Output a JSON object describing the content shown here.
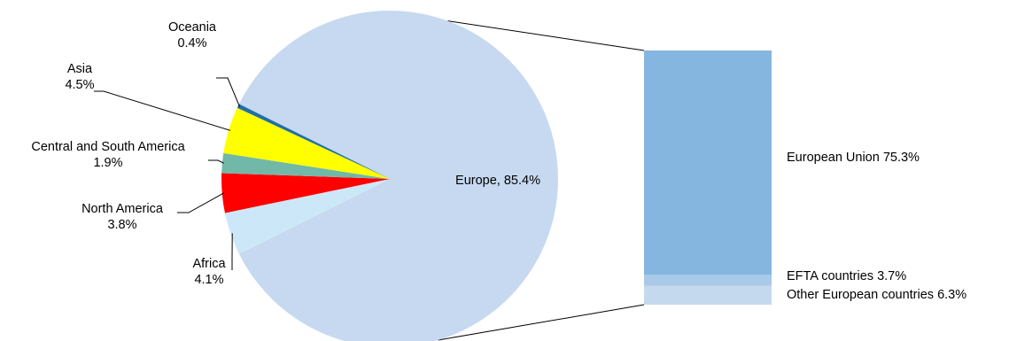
{
  "chart_data": {
    "type": "bar-of-pie",
    "pie": {
      "slices": [
        {
          "name": "Europe",
          "value": 85.4,
          "label_lines": [
            "Europe, 85.4%"
          ],
          "color": "#c6d9f0"
        },
        {
          "name": "Africa",
          "value": 4.1,
          "label_lines": [
            "Africa",
            "4.1%"
          ],
          "color": "#cce8f8"
        },
        {
          "name": "North America",
          "value": 3.8,
          "label_lines": [
            "North America",
            "3.8%"
          ],
          "color": "#ff0000"
        },
        {
          "name": "Central and South America",
          "value": 1.9,
          "label_lines": [
            "Central and South America",
            "1.9%"
          ],
          "color": "#72b8a8"
        },
        {
          "name": "Asia",
          "value": 4.5,
          "label_lines": [
            "Asia",
            "4.5%"
          ],
          "color": "#ffff00"
        },
        {
          "name": "Oceania",
          "value": 0.4,
          "label_lines": [
            "Oceania",
            "0.4%"
          ],
          "color": "#1f6fa8"
        }
      ]
    },
    "bar": {
      "breakdown_of": "Europe",
      "segments": [
        {
          "name": "European Union",
          "value": 75.3,
          "label": "European Union 75.3%",
          "color": "#85b6df"
        },
        {
          "name": "EFTA countries",
          "value": 3.7,
          "label": "EFTA countries 3.7%",
          "color": "#a9c9e8"
        },
        {
          "name": "Other European countries",
          "value": 6.3,
          "label": "Other European countries 6.3%",
          "color": "#c5d9ee"
        }
      ]
    }
  }
}
